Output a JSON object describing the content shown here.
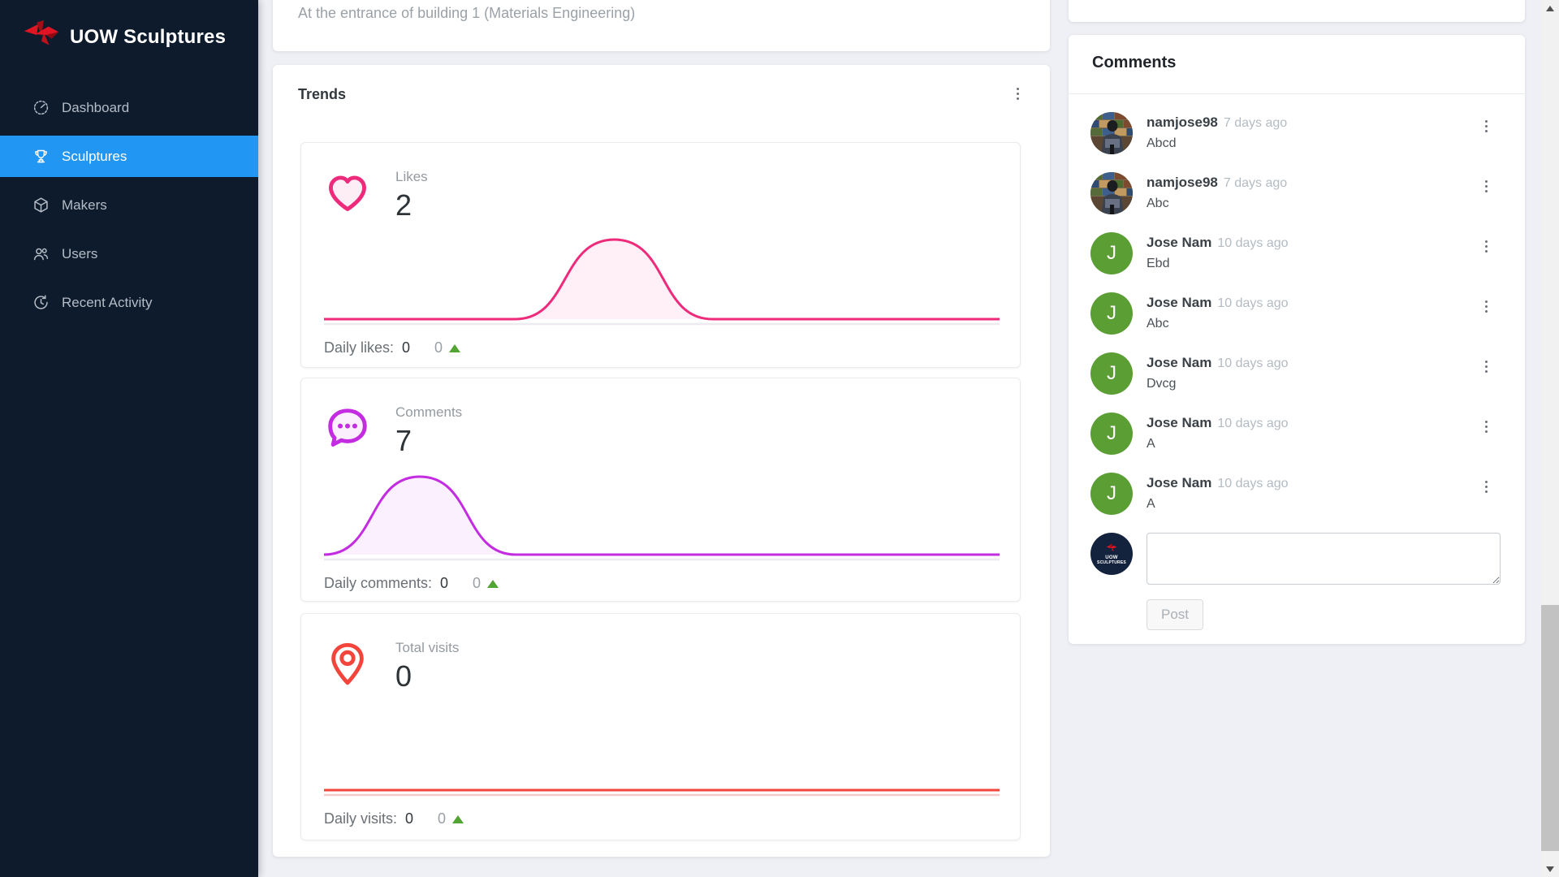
{
  "sidebar": {
    "logo_text": "UOW Sculptures",
    "items": [
      {
        "label": "Dashboard",
        "active": false
      },
      {
        "label": "Sculptures",
        "active": true
      },
      {
        "label": "Makers",
        "active": false
      },
      {
        "label": "Users",
        "active": false
      },
      {
        "label": "Recent Activity",
        "active": false
      }
    ]
  },
  "description_card": {
    "text": "At the entrance of building 1 (Materials Engineering)"
  },
  "trends": {
    "title": "Trends",
    "cards": [
      {
        "label": "Likes",
        "total": "2",
        "stat_label": "Daily likes:",
        "stat_value": "0",
        "stat_delta": "0",
        "color": "#ee2a7b",
        "muted_line": "#ececf0",
        "curve": {
          "start": 0.283,
          "peak": 0.43,
          "end": 0.575,
          "height": 98
        }
      },
      {
        "label": "Comments",
        "total": "7",
        "stat_label": "Daily comments:",
        "stat_value": "0",
        "stat_delta": "0",
        "color": "#c32ce0",
        "muted_line": "#ececf0",
        "curve": {
          "start": 0.0,
          "peak": 0.142,
          "end": 0.284,
          "height": 96
        }
      },
      {
        "label": "Total visits",
        "total": "0",
        "stat_label": "Daily visits:",
        "stat_value": "0",
        "stat_delta": "0",
        "color": "#f4453c",
        "muted_line": "#f6caca",
        "curve": {
          "start": 0,
          "peak": 0,
          "end": 0,
          "height": 0
        }
      }
    ]
  },
  "chart_data": [
    {
      "type": "area",
      "title": "Likes",
      "total": 2,
      "color": "#ee2a7b",
      "series": [
        {
          "name": "likes trend",
          "x_norm": [
            0,
            0.28,
            0.43,
            0.58,
            1
          ],
          "y_norm": [
            0,
            0,
            1,
            0,
            0
          ]
        }
      ],
      "daily": {
        "label": "Daily likes:",
        "value": 0,
        "delta": 0
      },
      "axes_visible": false,
      "grid": false,
      "legend": false
    },
    {
      "type": "area",
      "title": "Comments",
      "total": 7,
      "color": "#c32ce0",
      "series": [
        {
          "name": "comments trend",
          "x_norm": [
            0,
            0.14,
            0.28,
            1
          ],
          "y_norm": [
            0,
            1,
            0,
            0
          ]
        }
      ],
      "daily": {
        "label": "Daily comments:",
        "value": 0,
        "delta": 0
      },
      "axes_visible": false,
      "grid": false,
      "legend": false
    },
    {
      "type": "area",
      "title": "Total visits",
      "total": 0,
      "color": "#f4453c",
      "series": [
        {
          "name": "visits trend",
          "x_norm": [
            0,
            1
          ],
          "y_norm": [
            0,
            0
          ]
        }
      ],
      "daily": {
        "label": "Daily visits:",
        "value": 0,
        "delta": 0
      },
      "axes_visible": false,
      "grid": false,
      "legend": false
    }
  ],
  "comments_panel": {
    "title": "Comments",
    "comments": [
      {
        "author": "namjose98",
        "time": "7 days ago",
        "text": "Abcd",
        "avatar": "photo",
        "initial": ""
      },
      {
        "author": "namjose98",
        "time": "7 days ago",
        "text": "Abc",
        "avatar": "photo",
        "initial": ""
      },
      {
        "author": "Jose Nam",
        "time": "10 days ago",
        "text": "Ebd",
        "avatar": "letter",
        "initial": "J"
      },
      {
        "author": "Jose Nam",
        "time": "10 days ago",
        "text": "Abc",
        "avatar": "letter",
        "initial": "J"
      },
      {
        "author": "Jose Nam",
        "time": "10 days ago",
        "text": "Dvcg",
        "avatar": "letter",
        "initial": "J"
      },
      {
        "author": "Jose Nam",
        "time": "10 days ago",
        "text": "A",
        "avatar": "letter",
        "initial": "J"
      },
      {
        "author": "Jose Nam",
        "time": "10 days ago",
        "text": "A",
        "avatar": "letter",
        "initial": "J"
      }
    ],
    "input": {
      "value": "",
      "placeholder": ""
    },
    "post_button": "Post",
    "composer_avatar_line1": "UOW",
    "composer_avatar_line2": "SCULPTURES"
  },
  "colors": {
    "page_bg": "#eef0f5",
    "sidebar_bg": "#0e1b2c",
    "active_nav": "#2196f3",
    "likes_pink": "#ee2a7b",
    "comments_purple": "#c32ce0",
    "visits_red": "#f4453c",
    "delta_green": "#52a532",
    "avatar_green": "#5a9e34"
  }
}
